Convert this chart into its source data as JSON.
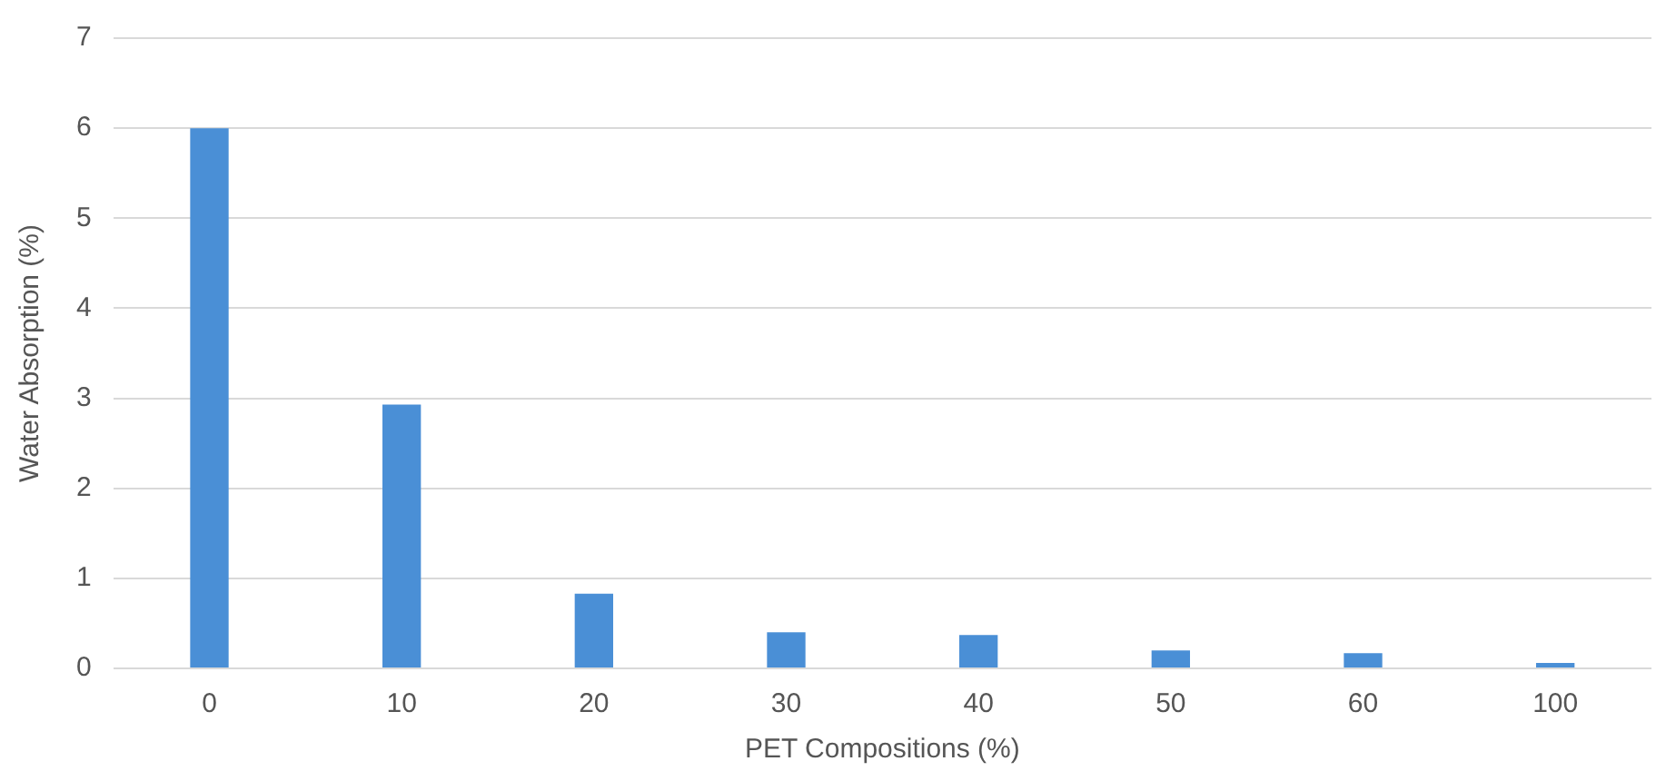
{
  "chart_data": {
    "type": "bar",
    "xlabel": "PET Compositions (%)",
    "ylabel": "Water Absorption (%)",
    "categories": [
      "0",
      "10",
      "20",
      "30",
      "40",
      "50",
      "60",
      "100"
    ],
    "values": [
      6.0,
      2.93,
      0.83,
      0.4,
      0.37,
      0.2,
      0.17,
      0.06
    ],
    "color": "#4a8fd6",
    "ylim": [
      0,
      7
    ],
    "yticks": [
      0,
      1,
      2,
      3,
      4,
      5,
      6,
      7
    ],
    "grid": "y",
    "legend": false
  }
}
